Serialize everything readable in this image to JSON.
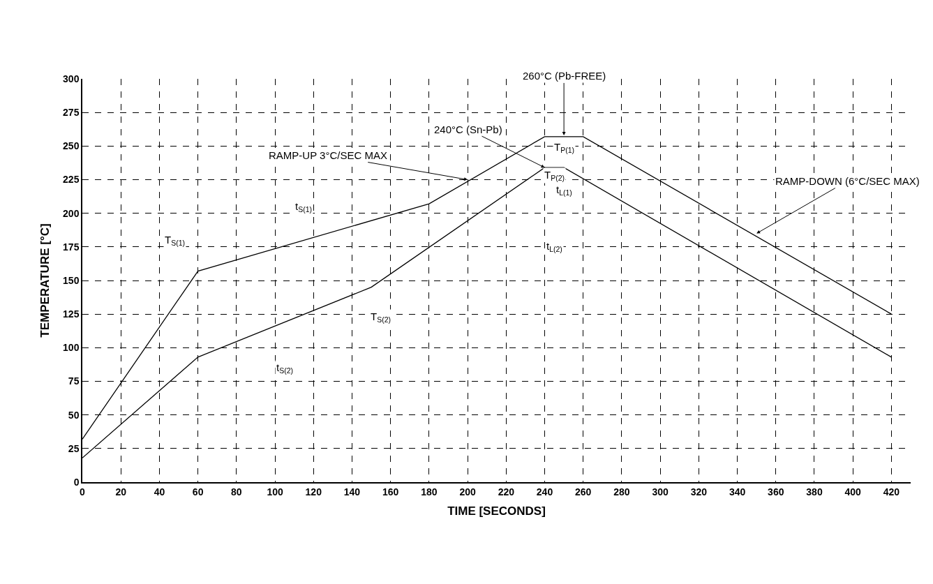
{
  "chart_data": {
    "type": "line",
    "xlabel": "TIME [SECONDS]",
    "ylabel": "TEMPERATURE [°C]",
    "xlim": [
      0,
      430
    ],
    "ylim": [
      0,
      300
    ],
    "xticks": [
      0,
      20,
      40,
      60,
      80,
      100,
      120,
      140,
      160,
      180,
      200,
      220,
      240,
      260,
      280,
      300,
      320,
      340,
      360,
      380,
      400,
      420
    ],
    "yticks": [
      0,
      25,
      50,
      75,
      100,
      125,
      150,
      175,
      200,
      225,
      250,
      275,
      300
    ],
    "grid": true,
    "marker": "none",
    "line_style": "solid",
    "series": [
      {
        "color": "#000000",
        "x": [
          0,
          60,
          180,
          240,
          260,
          420
        ],
        "values": [
          32,
          157,
          207,
          257,
          257,
          125
        ]
      },
      {
        "color": "#000000",
        "x": [
          0,
          60,
          150,
          240,
          250,
          420
        ],
        "values": [
          18,
          93,
          145,
          234,
          234,
          93
        ]
      }
    ],
    "annotations": [
      {
        "text": "260°C (Pb-FREE)",
        "x": 250,
        "y": 258
      },
      {
        "text": "240°C (Sn-Pb)",
        "x": 240,
        "y": 234
      },
      {
        "text": "RAMP-UP 3°C/SEC MAX",
        "x": 200,
        "y": 225
      },
      {
        "text": "RAMP-DOWN (6°C/SEC MAX)",
        "x": 350,
        "y": 185
      },
      {
        "text": "T$_{P(1)}$",
        "x": 250,
        "y": 249
      },
      {
        "text": "T$_{P(2)}$",
        "x": 245,
        "y": 228
      },
      {
        "text": "t$_{L(1)}$",
        "x": 250,
        "y": 217
      },
      {
        "text": "t$_{L(2)}$",
        "x": 245,
        "y": 175
      },
      {
        "text": "t$_{S(1)}$",
        "x": 115,
        "y": 205
      },
      {
        "text": "T$_{S(1)}$",
        "x": 48,
        "y": 180
      },
      {
        "text": "t$_{S(2)}$",
        "x": 105,
        "y": 85
      },
      {
        "text": "T$_{S(2)}$",
        "x": 155,
        "y": 123
      }
    ]
  }
}
